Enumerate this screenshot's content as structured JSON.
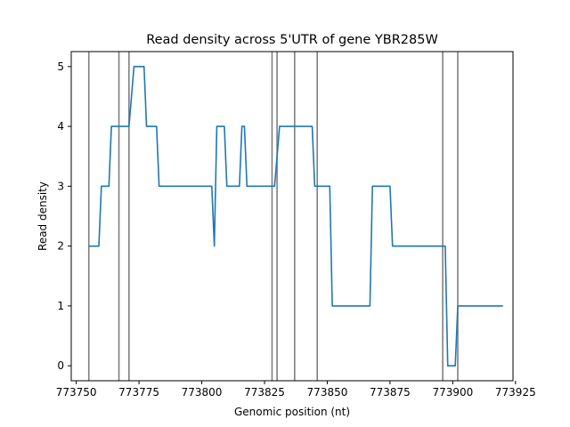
{
  "chart_data": {
    "type": "line",
    "title": "Read density across 5'UTR of gene YBR285W",
    "xlabel": "Genomic position (nt)",
    "ylabel": "Read density",
    "xlim": [
      773748,
      773924
    ],
    "ylim": [
      -0.25,
      5.25
    ],
    "x_ticks": [
      773750,
      773775,
      773800,
      773825,
      773850,
      773875,
      773900,
      773925
    ],
    "y_ticks": [
      0,
      1,
      2,
      3,
      4,
      5
    ],
    "grid": false,
    "legend": "none",
    "colors": {
      "series": "#1f77b4",
      "vertical_lines": "#808080"
    },
    "vertical_lines_x": [
      773755,
      773767,
      773771,
      773828,
      773830,
      773837,
      773846,
      773896,
      773902
    ],
    "series": [
      {
        "x": [
          773755,
          773759,
          773760,
          773763,
          773764,
          773771,
          773773,
          773777,
          773778,
          773782,
          773783,
          773804,
          773805,
          773806,
          773809,
          773810,
          773815,
          773816,
          773817,
          773818,
          773827,
          773829,
          773831,
          773844,
          773845,
          773851,
          773852,
          773867,
          773868,
          773875,
          773876,
          773897,
          773898,
          773901,
          773902,
          773920
        ],
        "y": [
          2,
          2,
          3,
          3,
          4,
          4,
          5,
          5,
          4,
          4,
          3,
          3,
          2,
          4,
          4,
          3,
          3,
          4,
          4,
          3,
          3,
          3,
          4,
          4,
          3,
          3,
          1,
          1,
          3,
          3,
          2,
          2,
          0,
          0,
          1,
          1
        ]
      }
    ]
  }
}
